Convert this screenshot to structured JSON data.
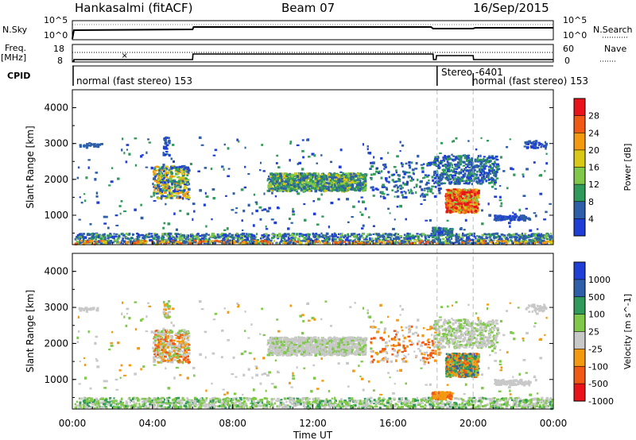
{
  "header": {
    "radar": "Hankasalmi (fitACF)",
    "beam": "Beam 07",
    "date": "16/Sep/2015"
  },
  "top_panels": {
    "nsky_label": "N.Sky",
    "nsearch_label": "N.Search",
    "nsky_ticks": [
      "10^5",
      "10^0"
    ],
    "nsearch_ticks": [
      "10^5",
      "10^0"
    ],
    "freq_label_line1": "Freq.",
    "freq_label_line2": "[MHz]",
    "freq_ticks": [
      "18",
      "8"
    ],
    "nave_label": "Nave",
    "nave_ticks": [
      "60",
      "0"
    ],
    "cpid_label": "CPID",
    "cpid_segments": [
      "normal (fast stereo) 153",
      "Stereo -6401",
      "normal (fast stereo) 153"
    ]
  },
  "chart_data": [
    {
      "type": "heatmap",
      "title": "",
      "xlabel": "",
      "ylabel": "Slant Range [km]",
      "colorbar_label": "Power [dB]",
      "colorbar_ticks": [
        "28",
        "24",
        "20",
        "16",
        "12",
        "8",
        "4"
      ],
      "colorbar_colors": [
        "#e8141a",
        "#f05a14",
        "#f39a12",
        "#d9c816",
        "#7fc84a",
        "#2f9a5a",
        "#2e5fa8",
        "#1f3fd6"
      ],
      "y_ticks": [
        "4000",
        "3000",
        "2000",
        "1000"
      ],
      "ylim": [
        180,
        4500
      ],
      "xlim": [
        0,
        24
      ],
      "backscatter_regions": [
        {
          "t0": 0.2,
          "t1": 23.9,
          "r0": 230,
          "r1": 600,
          "level": "low"
        },
        {
          "t0": 4.0,
          "t1": 5.8,
          "r0": 1500,
          "r1": 2400,
          "level": "mid"
        },
        {
          "t0": 9.7,
          "t1": 14.6,
          "r0": 1700,
          "r1": 2200,
          "level": "mid"
        },
        {
          "t0": 18.5,
          "t1": 20.8,
          "r0": 1100,
          "r1": 2700,
          "level": "high"
        },
        {
          "t0": 17.9,
          "t1": 18.9,
          "r0": 480,
          "r1": 680,
          "level": "low"
        }
      ]
    },
    {
      "type": "heatmap",
      "title": "",
      "xlabel": "Time UT",
      "ylabel": "Slant Range [km]",
      "colorbar_label": "Velocity [m s^-1]",
      "colorbar_ticks": [
        "1000",
        "500",
        "100",
        "25",
        "-25",
        "-100",
        "-500",
        "-1000"
      ],
      "colorbar_colors": [
        "#1f3fd6",
        "#2e5fa8",
        "#2f9a5a",
        "#7fc84a",
        "#c8c8c8",
        "#f39a12",
        "#f05a14",
        "#e8141a"
      ],
      "y_ticks": [
        "4000",
        "3000",
        "2000",
        "1000"
      ],
      "x_ticks": [
        "00:00",
        "04:00",
        "08:00",
        "12:00",
        "16:00",
        "20:00",
        "00:00"
      ],
      "ylim": [
        180,
        4500
      ],
      "xlim": [
        0,
        24
      ]
    }
  ]
}
